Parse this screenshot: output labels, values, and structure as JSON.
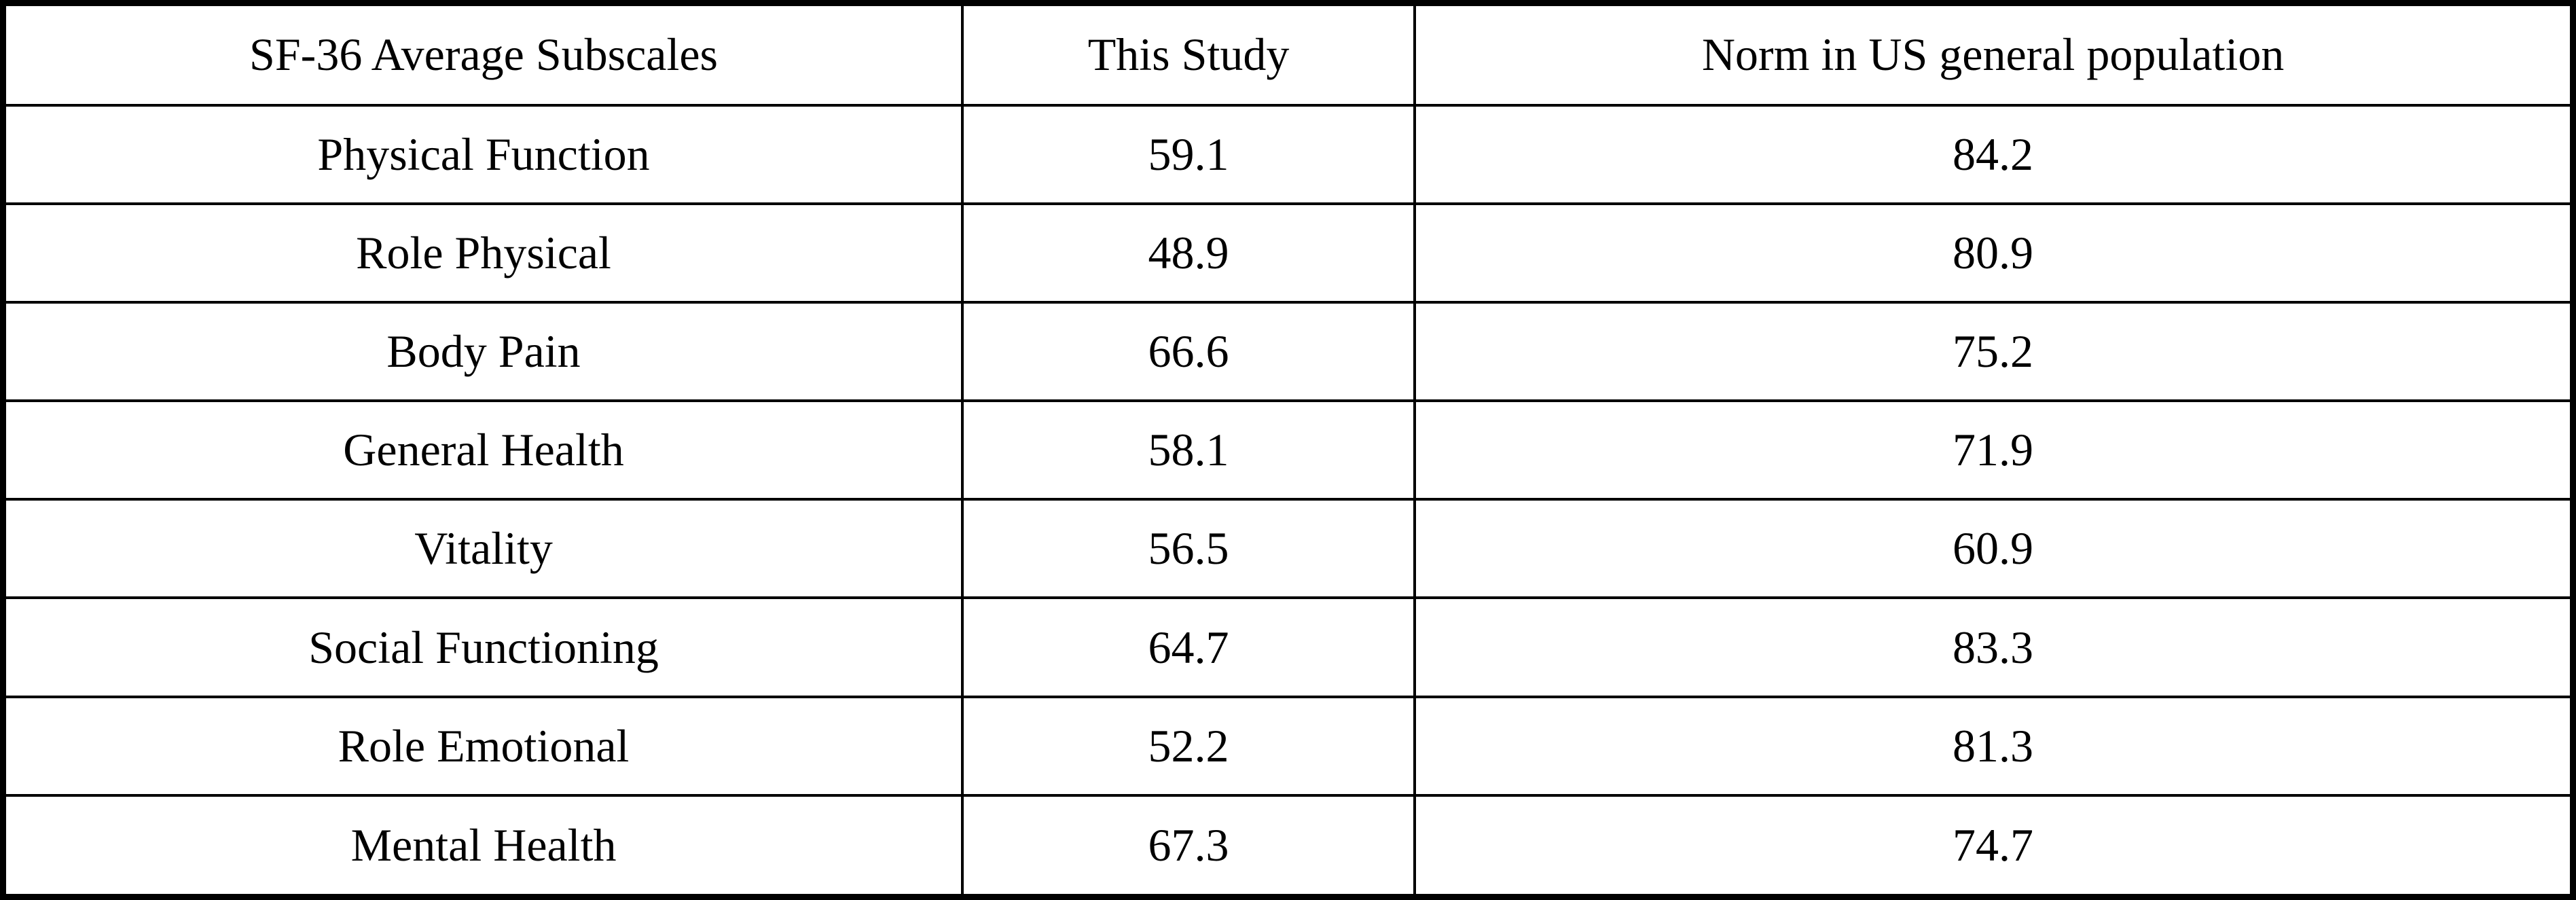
{
  "table": {
    "headers": [
      "SF-36 Average Subscales",
      "This Study",
      "Norm in US general population"
    ],
    "rows": [
      {
        "subscale": "Physical Function",
        "this_study": "59.1",
        "norm": "84.2"
      },
      {
        "subscale": "Role Physical",
        "this_study": "48.9",
        "norm": "80.9"
      },
      {
        "subscale": "Body Pain",
        "this_study": "66.6",
        "norm": "75.2"
      },
      {
        "subscale": "General Health",
        "this_study": "58.1",
        "norm": "71.9"
      },
      {
        "subscale": "Vitality",
        "this_study": "56.5",
        "norm": "60.9"
      },
      {
        "subscale": "Social Functioning",
        "this_study": "64.7",
        "norm": "83.3"
      },
      {
        "subscale": "Role Emotional",
        "this_study": "52.2",
        "norm": "81.3"
      },
      {
        "subscale": "Mental Health",
        "this_study": "67.3",
        "norm": "74.7"
      }
    ]
  },
  "colors": {
    "border": "#000000",
    "background": "#ffffff",
    "text": "#000000"
  },
  "chart_data": {
    "type": "table",
    "title": "SF-36 Average Subscales",
    "columns": [
      "SF-36 Average Subscales",
      "This Study",
      "Norm in US general population"
    ],
    "categories": [
      "Physical Function",
      "Role Physical",
      "Body Pain",
      "General Health",
      "Vitality",
      "Social Functioning",
      "Role Emotional",
      "Mental Health"
    ],
    "series": [
      {
        "name": "This Study",
        "values": [
          59.1,
          48.9,
          66.6,
          58.1,
          56.5,
          64.7,
          52.2,
          67.3
        ]
      },
      {
        "name": "Norm in US general population",
        "values": [
          84.2,
          80.9,
          75.2,
          71.9,
          60.9,
          83.3,
          81.3,
          74.7
        ]
      }
    ]
  }
}
